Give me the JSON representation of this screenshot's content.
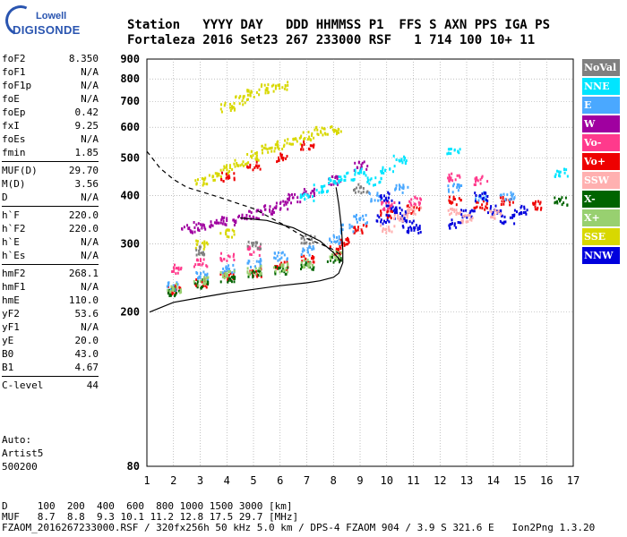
{
  "logo": {
    "line1": "Lowell",
    "line2": "DIGISONDE"
  },
  "header": {
    "line1": "Station   YYYY DAY   DDD HHMMSS P1  FFS S AXN PPS IGA PS",
    "line2": "Fortaleza 2016 Set23 267 233000 RSF   1 714 100 10+ 11"
  },
  "params": [
    {
      "name": "foF2",
      "value": "8.350"
    },
    {
      "name": "foF1",
      "value": "N/A"
    },
    {
      "name": "foF1p",
      "value": "N/A"
    },
    {
      "name": "foE",
      "value": "N/A"
    },
    {
      "name": "foEp",
      "value": "0.42"
    },
    {
      "name": "fxI",
      "value": "9.25"
    },
    {
      "name": "foEs",
      "value": "N/A"
    },
    {
      "name": "fmin",
      "value": "1.85"
    },
    {
      "name": "MUF(D)",
      "value": "29.70"
    },
    {
      "name": "M(D)",
      "value": "3.56"
    },
    {
      "name": "D",
      "value": "N/A"
    },
    {
      "name": "h`F",
      "value": "220.0"
    },
    {
      "name": "h`F2",
      "value": "220.0"
    },
    {
      "name": "h`E",
      "value": "N/A"
    },
    {
      "name": "h`Es",
      "value": "N/A"
    },
    {
      "name": "hmF2",
      "value": "268.1"
    },
    {
      "name": "hmF1",
      "value": "N/A"
    },
    {
      "name": "hmE",
      "value": "110.0"
    },
    {
      "name": "yF2",
      "value": "53.6"
    },
    {
      "name": "yF1",
      "value": "N/A"
    },
    {
      "name": "yE",
      "value": "20.0"
    },
    {
      "name": "B0",
      "value": "43.0"
    },
    {
      "name": "B1",
      "value": "4.67"
    },
    {
      "name": "C-level",
      "value": "44"
    }
  ],
  "auto": {
    "line1": "Auto:",
    "line2": "Artist5",
    "line3": "500200"
  },
  "footer": {
    "line1": "D     100  200  400  600  800 1000 1500 3000 [km]",
    "line2": "MUF   8.7  8.8  9.3 10.1 11.2 12.8 17.5 29.7 [MHz]",
    "line3": "FZAOM_2016267233000.RSF / 320fx256h 50 kHz 5.0 km / DPS-4 FZAOM 904 / 3.9 S 321.6 E   Ion2Png 1.3.20"
  },
  "legend": [
    {
      "label": "NoVal",
      "color": "#808080"
    },
    {
      "label": "NNE",
      "color": "#00e5ff"
    },
    {
      "label": "E",
      "color": "#4aa8ff"
    },
    {
      "label": "W",
      "color": "#a000a0"
    },
    {
      "label": "Vo-",
      "color": "#ff3a8c"
    },
    {
      "label": "Vo+",
      "color": "#ee0000"
    },
    {
      "label": "SSW",
      "color": "#ffb0b0"
    },
    {
      "label": "X-",
      "color": "#006400"
    },
    {
      "label": "X+",
      "color": "#98d070"
    },
    {
      "label": "SSE",
      "color": "#d8d800"
    },
    {
      "label": "NNW",
      "color": "#0000dd"
    }
  ],
  "chart_data": {
    "type": "scatter",
    "xlim": [
      1,
      17
    ],
    "ylim": [
      80,
      900
    ],
    "x_ticks": [
      "1",
      "2",
      "3",
      "4",
      "5",
      "6",
      "7",
      "8",
      "9",
      "10",
      "11",
      "12",
      "13",
      "14",
      "15",
      "16",
      "17"
    ],
    "y_ticks": [
      "80",
      "200",
      "300",
      "400",
      "500",
      "600",
      "700",
      "800",
      "900"
    ],
    "y_scale": "log",
    "grid": true,
    "series": [
      {
        "name": "SSE",
        "color": "#d8d800",
        "points": [
          [
            3,
            440
          ],
          [
            3.5,
            450
          ],
          [
            4,
            470
          ],
          [
            4.5,
            490
          ],
          [
            5,
            510
          ],
          [
            5.5,
            530
          ],
          [
            6,
            545
          ],
          [
            6.5,
            560
          ],
          [
            7,
            575
          ],
          [
            7.5,
            590
          ],
          [
            8,
            595
          ],
          [
            4,
            680
          ],
          [
            4.5,
            710
          ],
          [
            5,
            740
          ],
          [
            5.5,
            760
          ],
          [
            6,
            775
          ],
          [
            3,
            300
          ],
          [
            4,
            320
          ]
        ]
      },
      {
        "name": "Vo+",
        "color": "#ee0000",
        "points": [
          [
            2,
            230
          ],
          [
            3,
            240
          ],
          [
            4,
            250
          ],
          [
            5,
            255
          ],
          [
            6,
            265
          ],
          [
            7,
            275
          ],
          [
            8,
            290
          ],
          [
            8.5,
            305
          ],
          [
            9,
            330
          ],
          [
            10,
            360
          ],
          [
            11,
            370
          ],
          [
            12.5,
            390
          ],
          [
            13.5,
            380
          ],
          [
            14.5,
            390
          ],
          [
            15.5,
            380
          ],
          [
            4,
            450
          ],
          [
            5,
            480
          ],
          [
            6,
            505
          ],
          [
            7,
            540
          ]
        ]
      },
      {
        "name": "E",
        "color": "#4aa8ff",
        "points": [
          [
            2,
            235
          ],
          [
            3,
            250
          ],
          [
            4,
            260
          ],
          [
            5,
            270
          ],
          [
            6,
            280
          ],
          [
            7,
            290
          ],
          [
            8,
            310
          ],
          [
            8.5,
            330
          ],
          [
            9,
            350
          ],
          [
            9.5,
            400
          ],
          [
            10.5,
            420
          ],
          [
            12.5,
            420
          ],
          [
            13.5,
            400
          ],
          [
            14.5,
            400
          ]
        ]
      },
      {
        "name": "W",
        "color": "#a000a0",
        "points": [
          [
            2.5,
            330
          ],
          [
            3,
            335
          ],
          [
            3.5,
            340
          ],
          [
            4,
            345
          ],
          [
            4.5,
            350
          ],
          [
            5,
            360
          ],
          [
            5.5,
            370
          ],
          [
            6,
            380
          ],
          [
            6.5,
            395
          ],
          [
            7,
            410
          ],
          [
            8,
            440
          ],
          [
            9,
            480
          ]
        ]
      },
      {
        "name": "NNE",
        "color": "#00e5ff",
        "points": [
          [
            7,
            400
          ],
          [
            7.5,
            420
          ],
          [
            8,
            440
          ],
          [
            8.5,
            450
          ],
          [
            9,
            460
          ],
          [
            9.5,
            440
          ],
          [
            10,
            470
          ],
          [
            10.5,
            500
          ],
          [
            12.5,
            520
          ],
          [
            16.5,
            460
          ]
        ]
      },
      {
        "name": "NNW",
        "color": "#0000dd",
        "points": [
          [
            9.8,
            350
          ],
          [
            10,
            400
          ],
          [
            10.2,
            380
          ],
          [
            10.5,
            360
          ],
          [
            10.8,
            340
          ],
          [
            11,
            330
          ],
          [
            12.5,
            340
          ],
          [
            13,
            360
          ],
          [
            13.5,
            400
          ],
          [
            14,
            370
          ],
          [
            14.5,
            350
          ],
          [
            15,
            370
          ]
        ]
      },
      {
        "name": "X-",
        "color": "#006400",
        "points": [
          [
            2,
            228
          ],
          [
            3,
            238
          ],
          [
            4,
            246
          ],
          [
            5,
            252
          ],
          [
            6,
            258
          ],
          [
            7,
            265
          ],
          [
            8,
            278
          ],
          [
            16.5,
            390
          ]
        ]
      },
      {
        "name": "X+",
        "color": "#98d070",
        "points": [
          [
            2,
            232
          ],
          [
            3,
            242
          ],
          [
            4,
            252
          ],
          [
            5,
            258
          ],
          [
            6,
            262
          ],
          [
            7,
            270
          ],
          [
            8,
            282
          ]
        ]
      },
      {
        "name": "SSW",
        "color": "#ffb0b0",
        "points": [
          [
            10,
            330
          ],
          [
            10.5,
            350
          ],
          [
            11,
            370
          ],
          [
            12.5,
            370
          ],
          [
            13,
            350
          ],
          [
            14,
            360
          ]
        ]
      },
      {
        "name": "Vo-",
        "color": "#ff3a8c",
        "points": [
          [
            2,
            260
          ],
          [
            3,
            270
          ],
          [
            4,
            280
          ],
          [
            5,
            290
          ],
          [
            10,
            380
          ],
          [
            11,
            390
          ],
          [
            12.5,
            450
          ],
          [
            13.5,
            440
          ]
        ]
      },
      {
        "name": "NoVal",
        "color": "#808080",
        "points": [
          [
            3,
            290
          ],
          [
            5,
            300
          ],
          [
            7,
            310
          ],
          [
            9,
            420
          ]
        ]
      }
    ],
    "profile_solid": [
      [
        1.1,
        200
      ],
      [
        2,
        212
      ],
      [
        3,
        218
      ],
      [
        4,
        224
      ],
      [
        5,
        229
      ],
      [
        6,
        234
      ],
      [
        7,
        238
      ],
      [
        7.5,
        241
      ],
      [
        8,
        246
      ],
      [
        8.2,
        252
      ],
      [
        8.35,
        268
      ],
      [
        8.35,
        290
      ],
      [
        8.3,
        330
      ],
      [
        8.2,
        380
      ],
      [
        8.1,
        420
      ]
    ],
    "profile_solid2": [
      [
        4.5,
        350
      ],
      [
        5.5,
        345
      ],
      [
        6.5,
        330
      ],
      [
        7.5,
        305
      ],
      [
        8,
        285
      ],
      [
        8.3,
        270
      ]
    ],
    "profile_dashed": [
      [
        1,
        520
      ],
      [
        1.5,
        470
      ],
      [
        2,
        440
      ],
      [
        2.5,
        420
      ],
      [
        3,
        410
      ],
      [
        3.5,
        400
      ],
      [
        4,
        390
      ],
      [
        5,
        370
      ],
      [
        6,
        340
      ],
      [
        7,
        310
      ],
      [
        7.5,
        300
      ],
      [
        8,
        290
      ],
      [
        8.3,
        280
      ]
    ]
  }
}
